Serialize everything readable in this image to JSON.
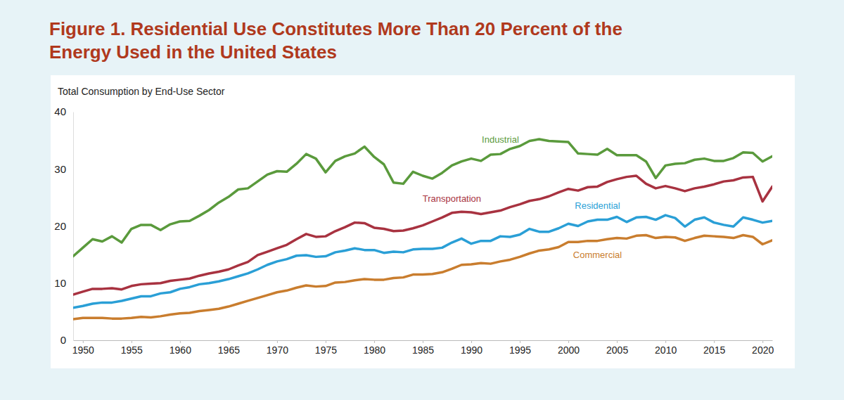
{
  "chart_data": {
    "type": "line",
    "title": "Figure 1. Residential Use Constitutes More Than 20 Percent of the Energy Used in the United States",
    "y_label": "Total Consumption by End-Use Sector",
    "x": [
      1949,
      1950,
      1951,
      1952,
      1953,
      1954,
      1955,
      1956,
      1957,
      1958,
      1959,
      1960,
      1961,
      1962,
      1963,
      1964,
      1965,
      1966,
      1967,
      1968,
      1969,
      1970,
      1971,
      1972,
      1973,
      1974,
      1975,
      1976,
      1977,
      1978,
      1979,
      1980,
      1981,
      1982,
      1983,
      1984,
      1985,
      1986,
      1987,
      1988,
      1989,
      1990,
      1991,
      1992,
      1993,
      1994,
      1995,
      1996,
      1997,
      1998,
      1999,
      2000,
      2001,
      2002,
      2003,
      2004,
      2005,
      2006,
      2007,
      2008,
      2009,
      2010,
      2011,
      2012,
      2013,
      2014,
      2015,
      2016,
      2017,
      2018,
      2019,
      2020,
      2021
    ],
    "xlim": [
      1949,
      2021
    ],
    "xticks": [
      1950,
      1955,
      1960,
      1965,
      1970,
      1975,
      1980,
      1985,
      1990,
      1995,
      2000,
      2005,
      2010,
      2015,
      2020
    ],
    "ylim": [
      0,
      40
    ],
    "yticks": [
      0,
      10,
      20,
      30,
      40
    ],
    "grid": false,
    "series": [
      {
        "name": "Industrial",
        "color": "#5a9a3c",
        "values": [
          14.7,
          16.2,
          17.7,
          17.3,
          18.2,
          17.1,
          19.5,
          20.2,
          20.2,
          19.3,
          20.3,
          20.8,
          20.9,
          21.8,
          22.8,
          24.1,
          25.1,
          26.4,
          26.6,
          27.8,
          29.0,
          29.6,
          29.5,
          30.9,
          32.6,
          31.8,
          29.4,
          31.4,
          32.2,
          32.7,
          33.9,
          32.1,
          30.8,
          27.6,
          27.4,
          29.5,
          28.8,
          28.3,
          29.3,
          30.6,
          31.3,
          31.8,
          31.4,
          32.5,
          32.6,
          33.5,
          34.0,
          34.9,
          35.2,
          34.9,
          34.8,
          34.7,
          32.7,
          32.6,
          32.5,
          33.5,
          32.4,
          32.4,
          32.4,
          31.3,
          28.4,
          30.6,
          30.9,
          31.0,
          31.6,
          31.8,
          31.4,
          31.4,
          31.9,
          32.9,
          32.8,
          31.3,
          32.2
        ]
      },
      {
        "name": "Transportation",
        "color": "#a83240",
        "values": [
          8.0,
          8.5,
          9.0,
          9.0,
          9.1,
          8.9,
          9.5,
          9.8,
          9.9,
          10.0,
          10.4,
          10.6,
          10.8,
          11.3,
          11.7,
          12.0,
          12.4,
          13.1,
          13.7,
          14.9,
          15.5,
          16.1,
          16.7,
          17.7,
          18.6,
          18.1,
          18.2,
          19.1,
          19.8,
          20.6,
          20.5,
          19.7,
          19.5,
          19.1,
          19.2,
          19.6,
          20.1,
          20.8,
          21.5,
          22.3,
          22.5,
          22.4,
          22.1,
          22.4,
          22.7,
          23.3,
          23.8,
          24.4,
          24.7,
          25.2,
          25.9,
          26.5,
          26.2,
          26.8,
          26.9,
          27.7,
          28.2,
          28.6,
          28.8,
          27.4,
          26.6,
          27.0,
          26.6,
          26.1,
          26.6,
          26.9,
          27.3,
          27.8,
          28.0,
          28.5,
          28.6,
          24.3,
          26.9
        ]
      },
      {
        "name": "Residential",
        "color": "#2a9fd6",
        "values": [
          5.7,
          6.0,
          6.4,
          6.6,
          6.6,
          6.9,
          7.3,
          7.7,
          7.7,
          8.2,
          8.4,
          9.0,
          9.3,
          9.8,
          10.0,
          10.3,
          10.7,
          11.2,
          11.7,
          12.4,
          13.2,
          13.8,
          14.2,
          14.8,
          14.9,
          14.6,
          14.7,
          15.4,
          15.7,
          16.1,
          15.8,
          15.8,
          15.3,
          15.5,
          15.4,
          15.9,
          16.0,
          16.0,
          16.2,
          17.1,
          17.8,
          16.9,
          17.4,
          17.4,
          18.2,
          18.1,
          18.5,
          19.5,
          19.0,
          19.0,
          19.6,
          20.4,
          20.0,
          20.8,
          21.1,
          21.1,
          21.6,
          20.7,
          21.5,
          21.6,
          21.1,
          21.9,
          21.4,
          19.9,
          21.1,
          21.5,
          20.6,
          20.2,
          19.9,
          21.5,
          21.1,
          20.6,
          20.9
        ]
      },
      {
        "name": "Commercial",
        "color": "#c97d2e",
        "values": [
          3.7,
          3.9,
          3.9,
          3.9,
          3.8,
          3.8,
          3.9,
          4.1,
          4.0,
          4.2,
          4.5,
          4.7,
          4.8,
          5.1,
          5.3,
          5.5,
          5.9,
          6.4,
          6.9,
          7.4,
          7.9,
          8.4,
          8.7,
          9.2,
          9.6,
          9.4,
          9.5,
          10.1,
          10.2,
          10.5,
          10.7,
          10.6,
          10.6,
          10.9,
          11.0,
          11.5,
          11.5,
          11.6,
          11.9,
          12.5,
          13.2,
          13.3,
          13.5,
          13.4,
          13.8,
          14.1,
          14.6,
          15.2,
          15.7,
          15.9,
          16.3,
          17.2,
          17.2,
          17.4,
          17.4,
          17.7,
          17.9,
          17.8,
          18.3,
          18.4,
          17.9,
          18.1,
          18.0,
          17.4,
          17.9,
          18.3,
          18.2,
          18.1,
          17.9,
          18.4,
          18.1,
          16.8,
          17.5
        ]
      }
    ]
  }
}
